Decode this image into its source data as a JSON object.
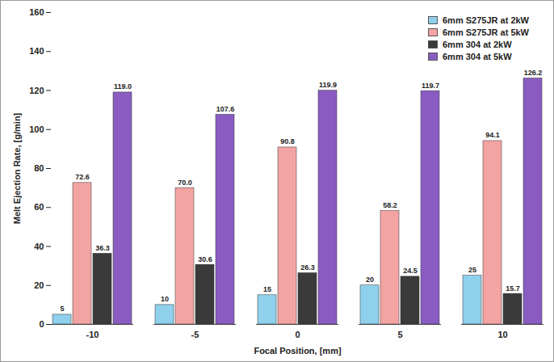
{
  "chart_data": {
    "type": "bar",
    "x_label": "Focal Position, [mm]",
    "y_label": "Melt Ejection Rate, [g/min]",
    "categories": [
      "-10",
      "-5",
      "0",
      "5",
      "10"
    ],
    "series": [
      {
        "name": "6mm S275JR at 2kW",
        "color": "#8fd0ec",
        "values": [
          5,
          10,
          15,
          20,
          25
        ]
      },
      {
        "name": "6mm S275JR at 5kW",
        "color": "#f4a3a3",
        "values": [
          72.6,
          70.0,
          90.8,
          58.2,
          94.1
        ],
        "value_labels": [
          "72.6",
          "70.0",
          "90.8",
          "58.2",
          "94.1"
        ]
      },
      {
        "name": "6mm 304 at 2kW",
        "color": "#3a3a3a",
        "values": [
          36.3,
          30.6,
          26.3,
          24.5,
          15.7
        ]
      },
      {
        "name": "6mm 304 at 5kW",
        "color": "#8a5cc2",
        "values": [
          119.0,
          107.6,
          119.9,
          119.7,
          126.2
        ],
        "value_labels": [
          "119.0",
          "107.6",
          "119.9",
          "119.7",
          "126.2"
        ]
      }
    ],
    "ylim": [
      0,
      160
    ],
    "yticks": [
      0,
      20,
      40,
      60,
      80,
      100,
      120,
      140,
      160
    ],
    "grid": false,
    "legend": "top-right",
    "data_labels": true
  }
}
